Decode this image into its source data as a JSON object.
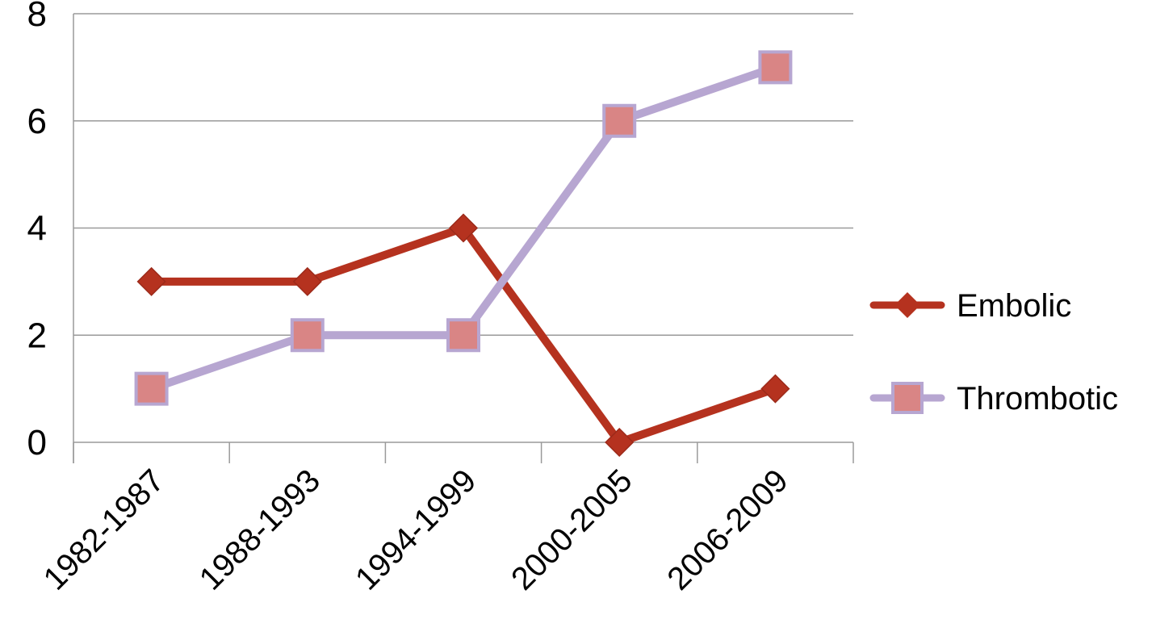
{
  "chart_data": {
    "type": "line",
    "title": "",
    "xlabel": "",
    "ylabel": "",
    "categories": [
      "1982-1987",
      "1988-1993",
      "1994-1999",
      "2000-2005",
      "2006-2009"
    ],
    "ylim": [
      0,
      8
    ],
    "yticks": [
      "0",
      "2",
      "4",
      "6",
      "8"
    ],
    "grid": "horizontal",
    "legend_position": "right",
    "series": [
      {
        "name": "Embolic",
        "values": [
          3,
          3,
          4,
          0,
          1
        ],
        "color": "#b5321f",
        "marker": "diamond"
      },
      {
        "name": "Thrombotic",
        "values": [
          1,
          2,
          2,
          6,
          7
        ],
        "color": "#b7a6d1",
        "marker": "square",
        "marker_color": "#d98585"
      }
    ]
  }
}
